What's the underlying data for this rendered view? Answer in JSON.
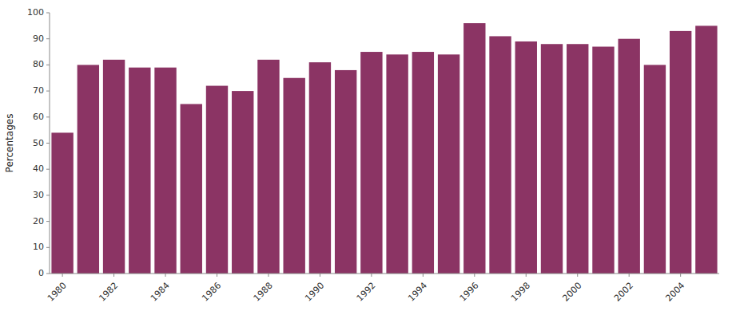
{
  "chart_data": {
    "type": "bar",
    "y_label": "Percentages",
    "categories": [
      "1980",
      null,
      "1982",
      null,
      "1984",
      null,
      "1986",
      null,
      "1988",
      null,
      "1990",
      null,
      "1992",
      null,
      "1994",
      null,
      "1996",
      null,
      "1998",
      null,
      "2000",
      null,
      "2002",
      null,
      "2004",
      null
    ],
    "values": [
      54,
      80,
      82,
      79,
      79,
      65,
      72,
      70,
      82,
      75,
      81,
      78,
      85,
      84,
      85,
      84,
      96,
      91,
      89,
      88,
      88,
      87,
      90,
      80,
      93,
      95
    ],
    "color": "#8B3464",
    "ylim": [
      0,
      100
    ],
    "yticks": [
      0,
      10,
      20,
      30,
      40,
      50,
      60,
      70,
      80,
      90,
      100
    ],
    "grid": false
  }
}
